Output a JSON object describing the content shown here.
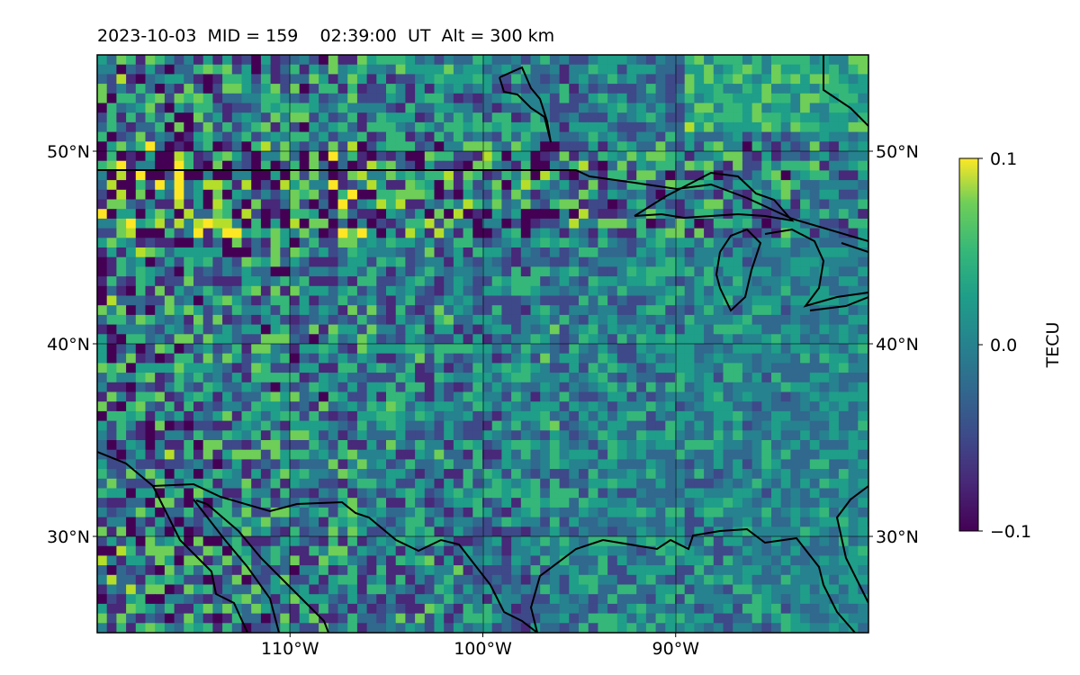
{
  "title": "2023-10-03  MID = 159    02:39:00  UT  Alt = 300 km",
  "map": {
    "lon_range": [
      -120,
      -80
    ],
    "lat_range": [
      25,
      55
    ],
    "lat_ticks": [
      {
        "value": 30,
        "label": "30°N"
      },
      {
        "value": 40,
        "label": "40°N"
      },
      {
        "value": 50,
        "label": "50°N"
      }
    ],
    "lon_ticks": [
      {
        "value": -110,
        "label": "110°W"
      },
      {
        "value": -100,
        "label": "100°W"
      },
      {
        "value": -90,
        "label": "90°W"
      }
    ],
    "colormap": "viridis",
    "background_color": "#2c7e7e",
    "coastline_color": "#000000"
  },
  "colorbar": {
    "label": "TECU",
    "min": -0.1,
    "max": 0.1,
    "ticks": [
      {
        "value": 0.1,
        "label": "0.1"
      },
      {
        "value": 0.0,
        "label": "0.0"
      },
      {
        "value": -0.1,
        "label": "−0.1"
      }
    ]
  }
}
